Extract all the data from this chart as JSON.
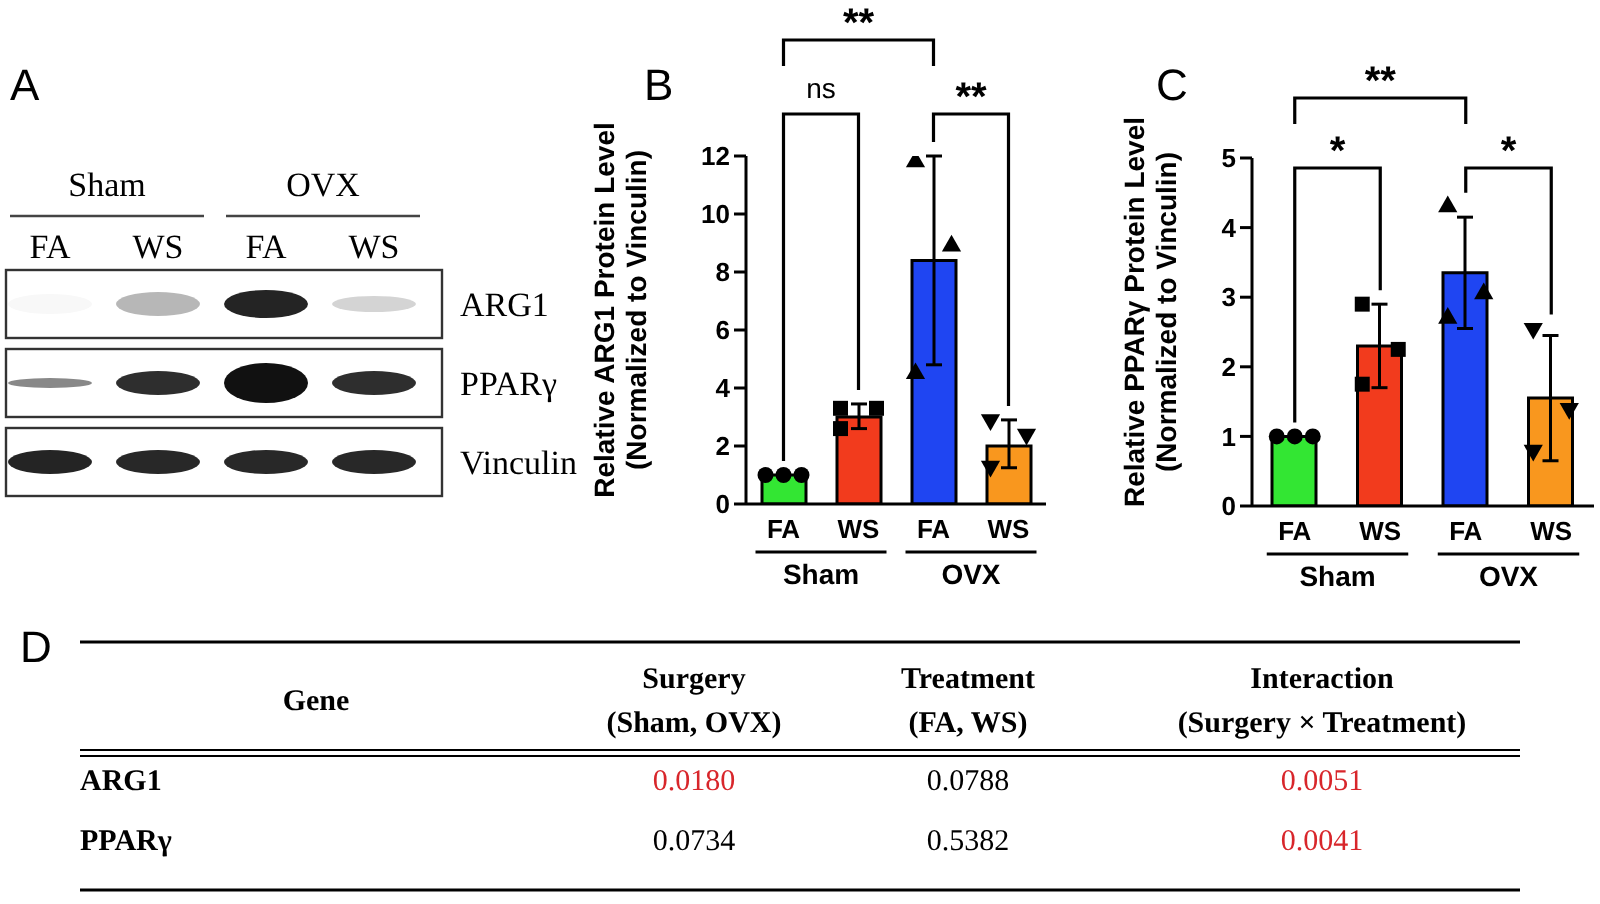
{
  "chart_data": [
    {
      "type": "other",
      "title": "A",
      "categories": [
        "FA",
        "WS",
        "FA",
        "WS"
      ],
      "y_categories": [
        "ARG1",
        "PPARγ",
        "Vinculin"
      ],
      "annotations": [
        "Sham",
        "OVX"
      ]
    },
    {
      "type": "bar",
      "title": "B",
      "ylabel": "Relative ARG1 Protein Level\n(Normalized to Vinculin)",
      "categories": [
        "FA",
        "WS",
        "FA",
        "WS"
      ],
      "ylim": [
        0,
        12
      ],
      "yticks": [
        0,
        2,
        4,
        6,
        8,
        10,
        12
      ],
      "series": [
        {
          "type": "bar",
          "values": [
            1.0,
            3.0,
            8.4,
            2.0
          ],
          "colors": [
            "#33e633",
            "#f23b1d",
            "#1f45f2",
            "#f9971e"
          ],
          "errors": [
            null,
            [
              2.6,
              3.45
            ],
            3.6,
            [
              1.25,
              2.9
            ]
          ]
        },
        {
          "type": "scatter",
          "values": [
            1.0,
            null,
            null,
            null
          ],
          "marker": "circle",
          "color": "#000000"
        },
        {
          "type": "scatter",
          "values": [
            1.0,
            null,
            null,
            null
          ],
          "marker": "circle",
          "color": "#000000"
        },
        {
          "type": "scatter",
          "values": [
            1.0,
            null,
            null,
            null
          ],
          "marker": "circle",
          "color": "#000000"
        },
        {
          "type": "scatter",
          "values": [
            null,
            3.3,
            null,
            null
          ],
          "marker": "square",
          "color": "#000000"
        },
        {
          "type": "scatter",
          "values": [
            null,
            3.3,
            null,
            null
          ],
          "marker": "square",
          "color": "#000000"
        },
        {
          "type": "scatter",
          "values": [
            null,
            2.6,
            null,
            null
          ],
          "marker": "square",
          "color": "#000000"
        },
        {
          "type": "scatter",
          "values": [
            null,
            null,
            11.8,
            null
          ],
          "marker": "triangle",
          "color": "#000000"
        },
        {
          "type": "scatter",
          "values": [
            null,
            null,
            8.9,
            null
          ],
          "marker": "triangle",
          "color": "#000000"
        },
        {
          "type": "scatter",
          "values": [
            null,
            null,
            4.5,
            null
          ],
          "marker": "triangle",
          "color": "#000000"
        },
        {
          "type": "scatter",
          "values": [
            null,
            null,
            null,
            2.9
          ],
          "marker": "triangle-down",
          "color": "#000000"
        },
        {
          "type": "scatter",
          "values": [
            null,
            null,
            null,
            2.4
          ],
          "marker": "triangle-down",
          "color": "#000000"
        },
        {
          "type": "scatter",
          "values": [
            null,
            null,
            null,
            1.3
          ],
          "marker": "triangle-down",
          "color": "#000000"
        }
      ],
      "annotations": [
        "**",
        "ns",
        "**",
        "Sham",
        "OVX"
      ]
    },
    {
      "type": "bar",
      "title": "C",
      "ylabel": "Relative PPARγ Protein Level\n(Normalized to Vinculin)",
      "categories": [
        "FA",
        "WS",
        "FA",
        "WS"
      ],
      "ylim": [
        0,
        5
      ],
      "yticks": [
        0,
        1,
        2,
        3,
        4,
        5
      ],
      "series": [
        {
          "type": "bar",
          "values": [
            1.0,
            2.3,
            3.35,
            1.55
          ],
          "colors": [
            "#33e633",
            "#f23b1d",
            "#1f45f2",
            "#f9971e"
          ],
          "errors": [
            null,
            0.6,
            0.8,
            0.9
          ]
        },
        {
          "type": "scatter",
          "values": [
            1.0,
            null,
            null,
            null
          ],
          "marker": "circle",
          "color": "#000000"
        },
        {
          "type": "scatter",
          "values": [
            1.0,
            null,
            null,
            null
          ],
          "marker": "circle",
          "color": "#000000"
        },
        {
          "type": "scatter",
          "values": [
            1.0,
            null,
            null,
            null
          ],
          "marker": "circle",
          "color": "#000000"
        },
        {
          "type": "scatter",
          "values": [
            null,
            2.9,
            null,
            null
          ],
          "marker": "square",
          "color": "#000000"
        },
        {
          "type": "scatter",
          "values": [
            null,
            2.25,
            null,
            null
          ],
          "marker": "square",
          "color": "#000000"
        },
        {
          "type": "scatter",
          "values": [
            null,
            1.75,
            null,
            null
          ],
          "marker": "square",
          "color": "#000000"
        },
        {
          "type": "scatter",
          "values": [
            null,
            null,
            4.3,
            null
          ],
          "marker": "triangle",
          "color": "#000000"
        },
        {
          "type": "scatter",
          "values": [
            null,
            null,
            3.05,
            null
          ],
          "marker": "triangle",
          "color": "#000000"
        },
        {
          "type": "scatter",
          "values": [
            null,
            null,
            2.7,
            null
          ],
          "marker": "triangle",
          "color": "#000000"
        },
        {
          "type": "scatter",
          "values": [
            null,
            null,
            null,
            2.55
          ],
          "marker": "triangle-down",
          "color": "#000000"
        },
        {
          "type": "scatter",
          "values": [
            null,
            null,
            null,
            1.4
          ],
          "marker": "triangle-down",
          "color": "#000000"
        },
        {
          "type": "scatter",
          "values": [
            null,
            null,
            null,
            0.8
          ],
          "marker": "triangle-down",
          "color": "#000000"
        }
      ],
      "annotations": [
        "**",
        "*",
        "*",
        "Sham",
        "OVX"
      ]
    },
    {
      "type": "other",
      "title": "D",
      "ylabel": "Gene",
      "categories": [
        "Surgery\n(Sham, OVX)",
        "Treatment\n(FA, WS)",
        "Interaction\n(Surgery × Treatment)"
      ],
      "y_categories": [
        "ARG1",
        "PPARγ"
      ],
      "cell_labels": [
        [
          "0.0180",
          "0.0788",
          "0.0051"
        ],
        [
          "0.0734",
          "0.5382",
          "0.0041"
        ]
      ],
      "colors": [
        [
          "#d8262b",
          "#000000",
          "#d8262b"
        ],
        [
          "#000000",
          "#000000",
          "#d8262b"
        ]
      ]
    }
  ]
}
